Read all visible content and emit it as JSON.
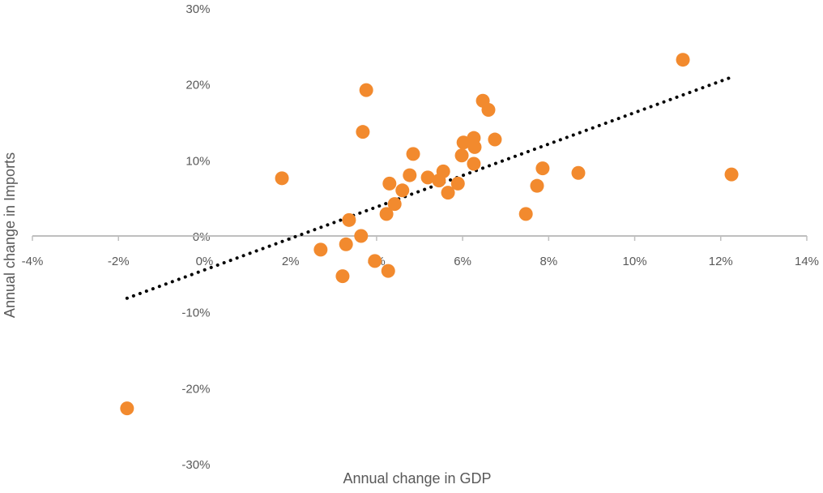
{
  "chart_data": {
    "type": "scatter",
    "title": "",
    "xlabel": "Annual change in GDP",
    "ylabel": "Annual change in Imports",
    "xlim": [
      -4,
      14
    ],
    "ylim": [
      -30,
      30
    ],
    "x_ticks": [
      -4,
      -2,
      0,
      2,
      4,
      6,
      8,
      10,
      12,
      14
    ],
    "y_ticks": [
      30,
      20,
      10,
      0,
      -10,
      -20,
      -30
    ],
    "x_tick_labels": [
      "-4%",
      "-2%",
      "0%",
      "2%",
      "4%",
      "6%",
      "8%",
      "10%",
      "12%",
      "14%"
    ],
    "y_tick_labels": [
      "30%",
      "20%",
      "10%",
      "0%",
      "-10%",
      "-20%",
      "-30%"
    ],
    "grid": false,
    "marker_color": "#F28A2E",
    "trendline_color": "#000000",
    "trendline": {
      "type": "linear",
      "style": "dotted",
      "from": [
        -1.8,
        -8.2
      ],
      "to": [
        12.2,
        20.8
      ]
    },
    "points": [
      [
        3.76,
        19.2
      ],
      [
        3.68,
        13.7
      ],
      [
        6.47,
        17.8
      ],
      [
        6.6,
        16.6
      ],
      [
        6.02,
        12.3
      ],
      [
        6.26,
        12.9
      ],
      [
        6.28,
        11.7
      ],
      [
        6.75,
        12.7
      ],
      [
        5.98,
        10.6
      ],
      [
        4.85,
        10.8
      ],
      [
        6.26,
        9.5
      ],
      [
        4.77,
        8.0
      ],
      [
        5.19,
        7.7
      ],
      [
        5.55,
        8.5
      ],
      [
        5.45,
        7.3
      ],
      [
        5.89,
        6.9
      ],
      [
        5.66,
        5.7
      ],
      [
        4.3,
        6.9
      ],
      [
        4.6,
        6.0
      ],
      [
        4.42,
        4.2
      ],
      [
        4.23,
        2.9
      ],
      [
        3.36,
        2.1
      ],
      [
        3.64,
        0.0
      ],
      [
        3.29,
        -1.1
      ],
      [
        2.7,
        -1.8
      ],
      [
        3.96,
        -3.3
      ],
      [
        4.27,
        -4.6
      ],
      [
        3.21,
        -5.3
      ],
      [
        7.47,
        2.9
      ],
      [
        1.8,
        7.6
      ],
      [
        -1.8,
        -22.7
      ],
      [
        11.12,
        23.2
      ],
      [
        12.25,
        8.1
      ],
      [
        7.86,
        8.9
      ],
      [
        7.73,
        6.6
      ],
      [
        8.69,
        8.3
      ]
    ]
  }
}
